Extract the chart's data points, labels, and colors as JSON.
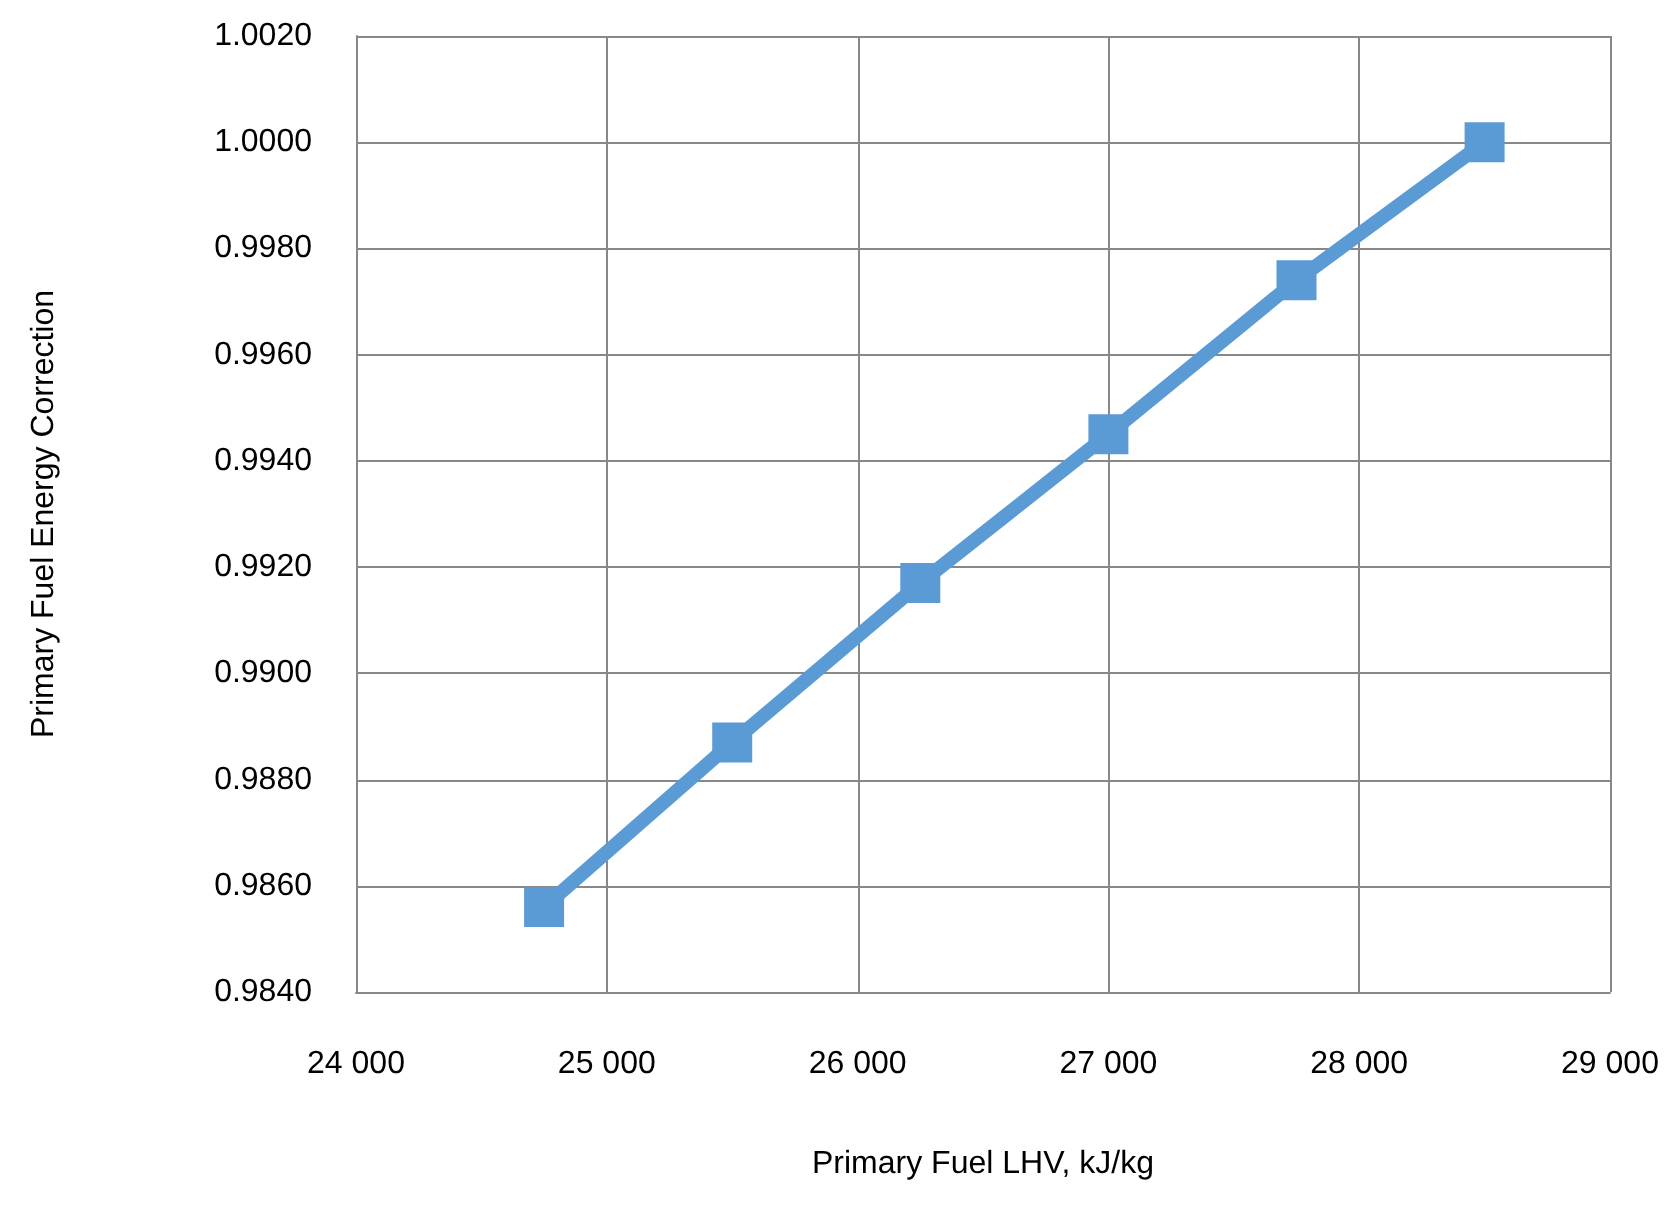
{
  "chart_data": {
    "type": "line",
    "xlabel": "Primary Fuel LHV, kJ/kg",
    "ylabel": "Primary Fuel Energy Correction",
    "x": [
      24750,
      25500,
      26250,
      27000,
      27750,
      28500
    ],
    "series": [
      {
        "color": "#5b9bd5",
        "values": [
          0.9856,
          0.9887,
          0.9917,
          0.9945,
          0.9974,
          1.0
        ]
      }
    ],
    "xlim": [
      24000,
      29000
    ],
    "xticks": [
      {
        "value": 24000,
        "label": "24 000"
      },
      {
        "value": 25000,
        "label": "25 000"
      },
      {
        "value": 26000,
        "label": "26 000"
      },
      {
        "value": 27000,
        "label": "27 000"
      },
      {
        "value": 28000,
        "label": "28 000"
      },
      {
        "value": 29000,
        "label": "29 000"
      }
    ],
    "ylim": [
      0.984,
      1.002
    ],
    "yticks": [
      {
        "value": 0.984,
        "label": "0.9840"
      },
      {
        "value": 0.986,
        "label": "0.9860"
      },
      {
        "value": 0.988,
        "label": "0.9880"
      },
      {
        "value": 0.99,
        "label": "0.9900"
      },
      {
        "value": 0.992,
        "label": "0.9920"
      },
      {
        "value": 0.994,
        "label": "0.9940"
      },
      {
        "value": 0.996,
        "label": "0.9960"
      },
      {
        "value": 0.998,
        "label": "0.9980"
      },
      {
        "value": 1.0,
        "label": "1.0000"
      },
      {
        "value": 1.002,
        "label": "1.0020"
      }
    ],
    "grid": true,
    "marker": "square",
    "line_style": "solid"
  }
}
